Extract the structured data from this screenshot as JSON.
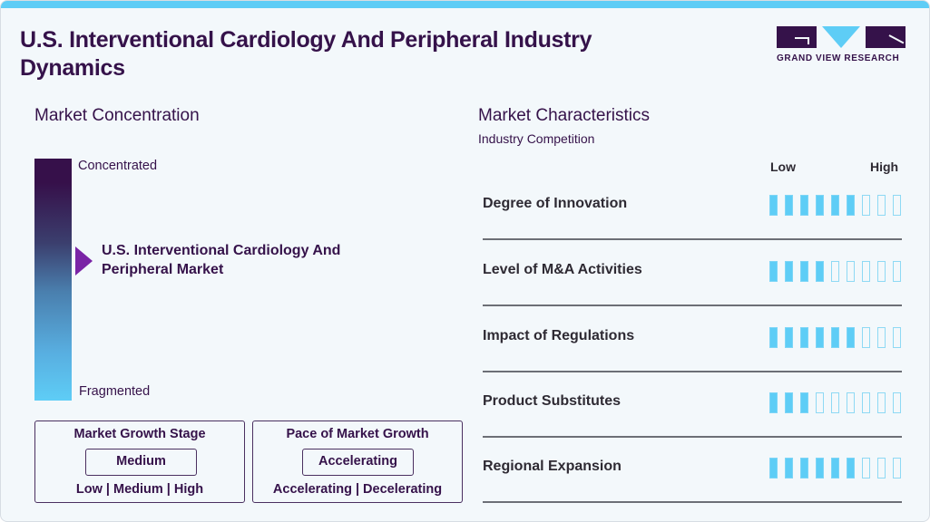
{
  "header": {
    "title": "U.S. Interventional Cardiology And Peripheral Industry Dynamics",
    "logo_text": "GRAND VIEW RESEARCH"
  },
  "colors": {
    "accent_blue": "#5ecdf6",
    "brand_purple": "#35124a",
    "pointer_purple": "#7a24a6"
  },
  "concentration": {
    "heading": "Market Concentration",
    "top_label": "Concentrated",
    "bottom_label": "Fragmented",
    "market_label": "U.S. Interventional Cardiology And Peripheral Market"
  },
  "growth_stage": {
    "heading": "Market Growth Stage",
    "value": "Medium",
    "options": "Low | Medium | High"
  },
  "growth_pace": {
    "heading": "Pace of Market Growth",
    "value": "Accelerating",
    "options": "Accelerating | Decelerating"
  },
  "characteristics": {
    "heading": "Market Characteristics",
    "subheading": "Industry Competition",
    "scale_low": "Low",
    "scale_high": "High",
    "max_rating": 9,
    "rows": [
      {
        "label": "Degree of Innovation",
        "rating": 6
      },
      {
        "label": "Level of M&A Activities",
        "rating": 4
      },
      {
        "label": "Impact of Regulations",
        "rating": 6
      },
      {
        "label": "Product Substitutes",
        "rating": 3
      },
      {
        "label": "Regional Expansion",
        "rating": 6
      }
    ]
  }
}
